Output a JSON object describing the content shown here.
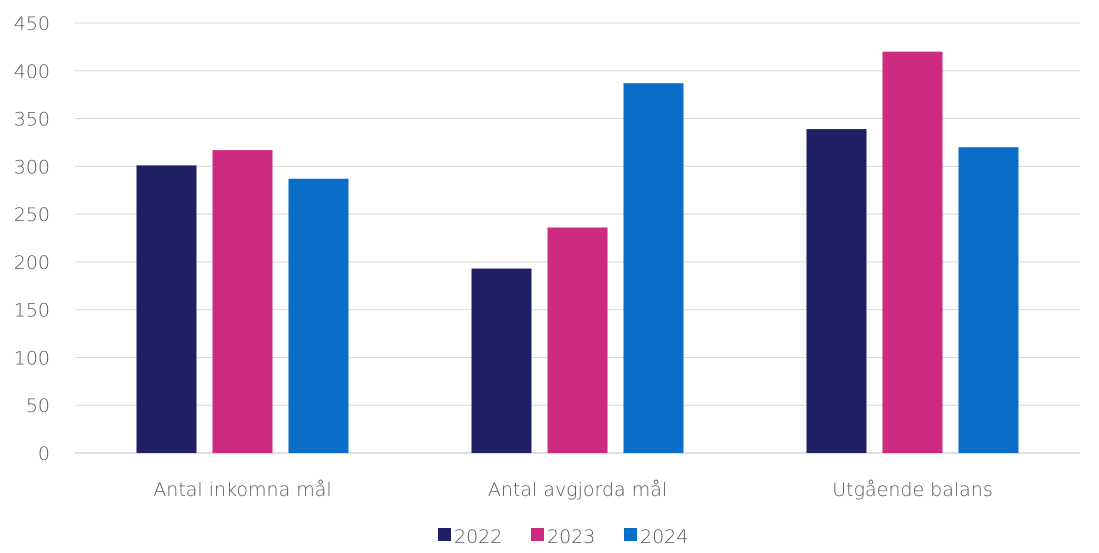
{
  "chart_data": {
    "type": "bar",
    "categories": [
      "Antal inkomna mål",
      "Antal avgjorda mål",
      "Utgående balans"
    ],
    "series": [
      {
        "name": "2022",
        "values": [
          301,
          193,
          339
        ],
        "color": "#1f1f63"
      },
      {
        "name": "2023",
        "values": [
          317,
          236,
          420
        ],
        "color": "#cd2b7f"
      },
      {
        "name": "2024",
        "values": [
          287,
          387,
          320
        ],
        "color": "#0a6dc7"
      }
    ],
    "yticks": [
      0,
      50,
      100,
      150,
      200,
      250,
      300,
      350,
      400,
      450
    ],
    "ylim": [
      0,
      450
    ],
    "grid": true,
    "legend_position": "bottom"
  }
}
